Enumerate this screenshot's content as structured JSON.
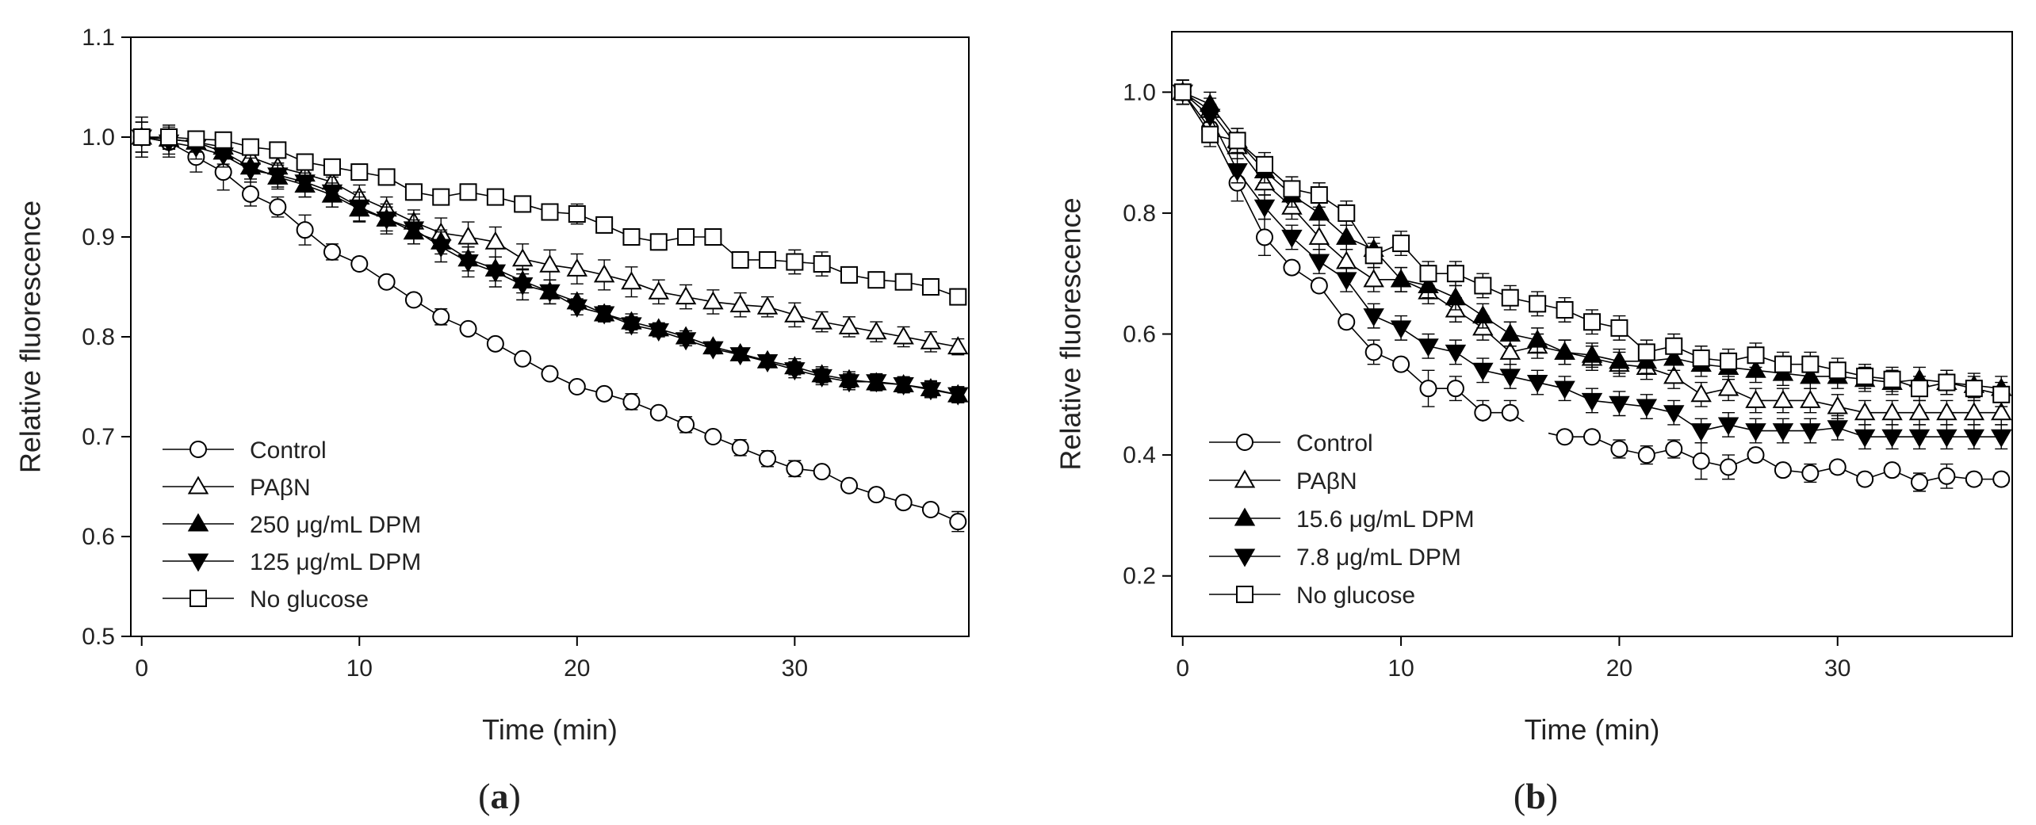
{
  "chart_data": [
    {
      "type": "line",
      "panel_label": "(a)",
      "panel_letter": "a",
      "xlabel": "Time (min)",
      "ylabel": "Relative fluorescence",
      "xlim": [
        -0.5,
        38
      ],
      "ylim": [
        0.5,
        1.1
      ],
      "x_ticks": [
        0,
        10,
        20,
        30
      ],
      "y_ticks": [
        0.5,
        0.6,
        0.7,
        0.8,
        0.9,
        1.0,
        1.1
      ],
      "y_tick_labels": [
        "0.5",
        "0.6",
        "0.7",
        "0.8",
        "0.9",
        "1.0",
        "1.1"
      ],
      "grid": false,
      "legend_position": "bottom-left",
      "x": [
        0,
        1.25,
        2.5,
        3.75,
        5,
        6.25,
        7.5,
        8.75,
        10,
        11.25,
        12.5,
        13.75,
        15,
        16.25,
        17.5,
        18.75,
        20,
        21.25,
        22.5,
        23.75,
        25,
        26.25,
        27.5,
        28.75,
        30,
        31.25,
        32.5,
        33.75,
        35,
        36.25,
        37.5
      ],
      "series": [
        {
          "name": "Control",
          "marker": "circle",
          "fill": "open",
          "values": [
            1.0,
            0.995,
            0.98,
            0.965,
            0.943,
            0.93,
            0.907,
            0.885,
            0.873,
            0.855,
            0.837,
            0.82,
            0.808,
            0.793,
            0.778,
            0.763,
            0.75,
            0.743,
            0.735,
            0.724,
            0.712,
            0.7,
            0.689,
            0.678,
            0.668,
            0.665,
            0.651,
            0.642,
            0.634,
            0.627,
            0.615
          ],
          "errors": [
            0.02,
            0.015,
            0.015,
            0.018,
            0.012,
            0.01,
            0.015,
            0.008,
            0.006,
            0.006,
            0.006,
            0.008,
            0.005,
            0.005,
            0.005,
            0.005,
            0.005,
            0.005,
            0.008,
            0.005,
            0.008,
            0.005,
            0.008,
            0.008,
            0.008,
            0.005,
            0.005,
            0.005,
            0.005,
            0.005,
            0.01
          ]
        },
        {
          "name": "PAβN",
          "marker": "triangle-up",
          "fill": "open",
          "values": [
            1.0,
            0.998,
            0.995,
            0.99,
            0.98,
            0.97,
            0.963,
            0.955,
            0.94,
            0.928,
            0.915,
            0.904,
            0.9,
            0.895,
            0.878,
            0.872,
            0.868,
            0.862,
            0.855,
            0.845,
            0.84,
            0.835,
            0.832,
            0.83,
            0.822,
            0.815,
            0.81,
            0.805,
            0.8,
            0.795,
            0.79
          ],
          "errors": [
            0.015,
            0.01,
            0.01,
            0.01,
            0.01,
            0.01,
            0.012,
            0.012,
            0.012,
            0.012,
            0.012,
            0.015,
            0.015,
            0.015,
            0.015,
            0.015,
            0.015,
            0.015,
            0.015,
            0.012,
            0.012,
            0.012,
            0.012,
            0.01,
            0.012,
            0.01,
            0.01,
            0.01,
            0.01,
            0.01,
            0.008
          ]
        },
        {
          "name": "250 μg/mL DPM",
          "marker": "triangle-up",
          "fill": "filled",
          "values": [
            1.0,
            0.998,
            0.995,
            0.985,
            0.97,
            0.96,
            0.952,
            0.942,
            0.928,
            0.918,
            0.905,
            0.895,
            0.878,
            0.868,
            0.856,
            0.845,
            0.835,
            0.823,
            0.815,
            0.808,
            0.8,
            0.79,
            0.783,
            0.776,
            0.77,
            0.762,
            0.757,
            0.754,
            0.752,
            0.748,
            0.742
          ],
          "errors": [
            0.015,
            0.01,
            0.01,
            0.012,
            0.012,
            0.012,
            0.012,
            0.012,
            0.012,
            0.012,
            0.012,
            0.012,
            0.012,
            0.012,
            0.012,
            0.012,
            0.008,
            0.008,
            0.008,
            0.006,
            0.006,
            0.005,
            0.005,
            0.005,
            0.008,
            0.008,
            0.008,
            0.008,
            0.008,
            0.008,
            0.008
          ]
        },
        {
          "name": "125 μg/mL DPM",
          "marker": "triangle-down",
          "fill": "filled",
          "values": [
            1.0,
            0.995,
            0.99,
            0.982,
            0.967,
            0.962,
            0.955,
            0.945,
            0.93,
            0.918,
            0.908,
            0.89,
            0.875,
            0.865,
            0.852,
            0.845,
            0.83,
            0.823,
            0.812,
            0.806,
            0.797,
            0.788,
            0.782,
            0.775,
            0.767,
            0.76,
            0.755,
            0.755,
            0.752,
            0.747,
            0.742
          ],
          "errors": [
            0.015,
            0.012,
            0.012,
            0.012,
            0.012,
            0.012,
            0.015,
            0.015,
            0.015,
            0.015,
            0.015,
            0.015,
            0.015,
            0.015,
            0.015,
            0.012,
            0.008,
            0.008,
            0.008,
            0.006,
            0.006,
            0.005,
            0.005,
            0.005,
            0.008,
            0.008,
            0.008,
            0.008,
            0.008,
            0.008,
            0.008
          ]
        },
        {
          "name": "No glucose",
          "marker": "square",
          "fill": "open",
          "values": [
            1.0,
            1.0,
            0.998,
            0.997,
            0.99,
            0.987,
            0.975,
            0.97,
            0.965,
            0.96,
            0.945,
            0.94,
            0.945,
            0.94,
            0.933,
            0.925,
            0.923,
            0.912,
            0.9,
            0.895,
            0.9,
            0.9,
            0.877,
            0.877,
            0.875,
            0.873,
            0.862,
            0.857,
            0.855,
            0.85,
            0.84
          ],
          "errors": [
            0.02,
            0.012,
            0.008,
            0.008,
            0.008,
            0.008,
            0.008,
            0.008,
            0.008,
            0.008,
            0.008,
            0.008,
            0.008,
            0.008,
            0.008,
            0.008,
            0.01,
            0.008,
            0.008,
            0.008,
            0.008,
            0.008,
            0.008,
            0.008,
            0.012,
            0.012,
            0.008,
            0.008,
            0.008,
            0.008,
            0.008
          ]
        }
      ]
    },
    {
      "type": "line",
      "panel_label": "(b)",
      "panel_letter": "b",
      "xlabel": "Time (min)",
      "ylabel": "Relative fluorescence",
      "xlim": [
        -0.5,
        38
      ],
      "ylim": [
        0.1,
        1.1
      ],
      "x_ticks": [
        0,
        10,
        20,
        30
      ],
      "y_ticks": [
        0.2,
        0.4,
        0.6,
        0.8,
        1.0
      ],
      "y_tick_labels": [
        "0.2",
        "0.4",
        "0.6",
        "0.8",
        "1.0"
      ],
      "grid": false,
      "legend_position": "bottom-left",
      "x": [
        0,
        1.25,
        2.5,
        3.75,
        5,
        6.25,
        7.5,
        8.75,
        10,
        11.25,
        12.5,
        13.75,
        15,
        16.25,
        17.5,
        18.75,
        20,
        21.25,
        22.5,
        23.75,
        25,
        26.25,
        27.5,
        28.75,
        30,
        31.25,
        32.5,
        33.75,
        35,
        36.25,
        37.5
      ],
      "series": [
        {
          "name": "Control",
          "marker": "circle",
          "fill": "open",
          "values": [
            1.0,
            0.94,
            0.85,
            0.76,
            0.71,
            0.68,
            0.62,
            0.57,
            0.55,
            0.51,
            0.51,
            0.47,
            0.47,
            0.44,
            0.43,
            0.43,
            0.41,
            0.4,
            0.41,
            0.39,
            0.38,
            0.4,
            0.375,
            0.37,
            0.38,
            0.36,
            0.375,
            0.355,
            0.365,
            0.36,
            0.36
          ],
          "errors": [
            0.02,
            0.02,
            0.03,
            0.03,
            0.01,
            0.01,
            0.01,
            0.02,
            0.01,
            0.03,
            0.02,
            0.02,
            0.02,
            0.01,
            0.01,
            0.01,
            0.015,
            0.015,
            0.015,
            0.03,
            0.02,
            0.01,
            0.01,
            0.015,
            0.01,
            0.01,
            0.01,
            0.015,
            0.02,
            0.01,
            0.01
          ]
        },
        {
          "name": "PAβN",
          "marker": "triangle-up",
          "fill": "open",
          "values": [
            1.0,
            0.97,
            0.91,
            0.85,
            0.81,
            0.76,
            0.72,
            0.69,
            0.69,
            0.67,
            0.64,
            0.61,
            0.57,
            0.58,
            0.57,
            0.56,
            0.55,
            0.545,
            0.53,
            0.5,
            0.51,
            0.49,
            0.49,
            0.49,
            0.48,
            0.47,
            0.47,
            0.47,
            0.47,
            0.47,
            0.47
          ],
          "errors": [
            0.02,
            0.02,
            0.02,
            0.02,
            0.02,
            0.02,
            0.02,
            0.02,
            0.02,
            0.02,
            0.02,
            0.02,
            0.02,
            0.02,
            0.02,
            0.02,
            0.02,
            0.02,
            0.02,
            0.02,
            0.02,
            0.02,
            0.02,
            0.02,
            0.02,
            0.02,
            0.02,
            0.02,
            0.02,
            0.02,
            0.02
          ]
        },
        {
          "name": "15.6 μg/mL DPM",
          "marker": "triangle-up",
          "fill": "filled",
          "values": [
            1.0,
            0.98,
            0.92,
            0.87,
            0.83,
            0.8,
            0.76,
            0.74,
            0.69,
            0.68,
            0.66,
            0.63,
            0.6,
            0.59,
            0.57,
            0.565,
            0.555,
            0.555,
            0.56,
            0.55,
            0.545,
            0.54,
            0.535,
            0.53,
            0.53,
            0.525,
            0.52,
            0.525,
            0.52,
            0.515,
            0.51
          ],
          "errors": [
            0.02,
            0.02,
            0.02,
            0.02,
            0.02,
            0.02,
            0.02,
            0.02,
            0.02,
            0.02,
            0.02,
            0.02,
            0.02,
            0.02,
            0.02,
            0.02,
            0.02,
            0.02,
            0.02,
            0.02,
            0.02,
            0.02,
            0.02,
            0.02,
            0.02,
            0.02,
            0.02,
            0.02,
            0.02,
            0.02,
            0.02
          ]
        },
        {
          "name": "7.8 μg/mL DPM",
          "marker": "triangle-down",
          "fill": "filled",
          "values": [
            1.0,
            0.96,
            0.87,
            0.81,
            0.76,
            0.72,
            0.69,
            0.63,
            0.61,
            0.58,
            0.57,
            0.54,
            0.53,
            0.52,
            0.51,
            0.49,
            0.485,
            0.48,
            0.47,
            0.44,
            0.45,
            0.44,
            0.44,
            0.44,
            0.445,
            0.43,
            0.43,
            0.43,
            0.43,
            0.43,
            0.43
          ],
          "errors": [
            0.02,
            0.02,
            0.02,
            0.02,
            0.02,
            0.02,
            0.02,
            0.02,
            0.02,
            0.02,
            0.02,
            0.02,
            0.02,
            0.02,
            0.02,
            0.02,
            0.02,
            0.02,
            0.02,
            0.02,
            0.02,
            0.02,
            0.02,
            0.02,
            0.02,
            0.02,
            0.02,
            0.02,
            0.02,
            0.02,
            0.02
          ]
        },
        {
          "name": "No glucose",
          "marker": "square",
          "fill": "open",
          "values": [
            1.0,
            0.93,
            0.92,
            0.88,
            0.84,
            0.83,
            0.8,
            0.73,
            0.75,
            0.7,
            0.7,
            0.68,
            0.66,
            0.65,
            0.64,
            0.62,
            0.61,
            0.57,
            0.58,
            0.56,
            0.555,
            0.565,
            0.55,
            0.55,
            0.54,
            0.53,
            0.525,
            0.51,
            0.52,
            0.51,
            0.5
          ],
          "errors": [
            0.02,
            0.02,
            0.02,
            0.02,
            0.02,
            0.02,
            0.02,
            0.02,
            0.02,
            0.02,
            0.02,
            0.02,
            0.02,
            0.02,
            0.02,
            0.02,
            0.02,
            0.02,
            0.02,
            0.02,
            0.02,
            0.02,
            0.02,
            0.02,
            0.02,
            0.02,
            0.02,
            0.02,
            0.02,
            0.02,
            0.02
          ]
        }
      ]
    }
  ]
}
